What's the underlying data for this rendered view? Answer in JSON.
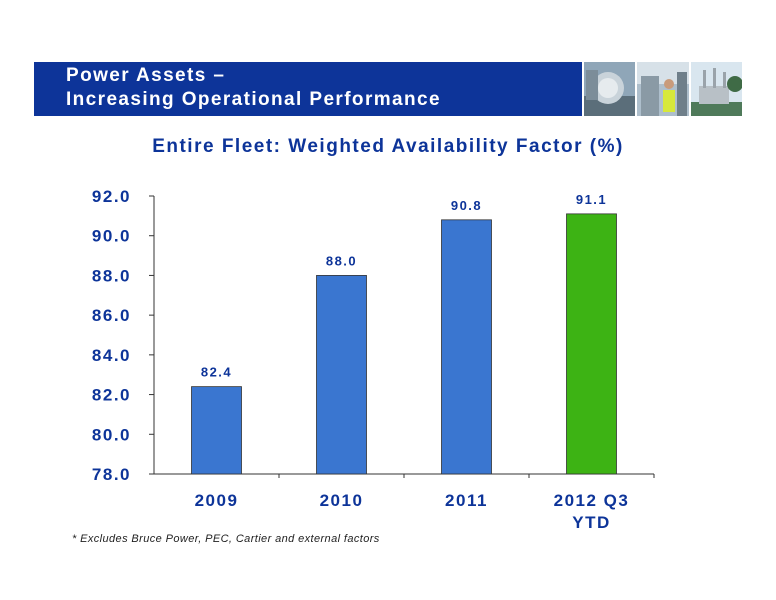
{
  "header": {
    "title_line1": "Power Assets –",
    "title_line2": "Increasing Operational Performance"
  },
  "colors": {
    "header_bg": "#0d3499",
    "title_text": "#0d3499",
    "bar_blue": "#3a76d0",
    "bar_green": "#3db314"
  },
  "chart_data": {
    "type": "bar",
    "title": "Entire Fleet: Weighted Availability Factor (%)",
    "categories": [
      "2009",
      "2010",
      "2011",
      "2012 Q3\nYTD"
    ],
    "values": [
      82.4,
      88.0,
      90.8,
      91.1
    ],
    "value_labels": [
      "82.4",
      "88.0",
      "90.8",
      "91.1"
    ],
    "bar_colors": [
      "#3a76d0",
      "#3a76d0",
      "#3a76d0",
      "#3db314"
    ],
    "ylim": [
      78.0,
      92.0
    ],
    "yticks": [
      78.0,
      80.0,
      82.0,
      84.0,
      86.0,
      88.0,
      90.0,
      92.0
    ],
    "ytick_labels": [
      "78.0",
      "80.0",
      "82.0",
      "84.0",
      "86.0",
      "88.0",
      "90.0",
      "92.0"
    ],
    "xlabel": "",
    "ylabel": "",
    "grid": false,
    "legend": "none"
  },
  "footnote": "* Excludes Bruce Power, PEC, Cartier and external factors"
}
